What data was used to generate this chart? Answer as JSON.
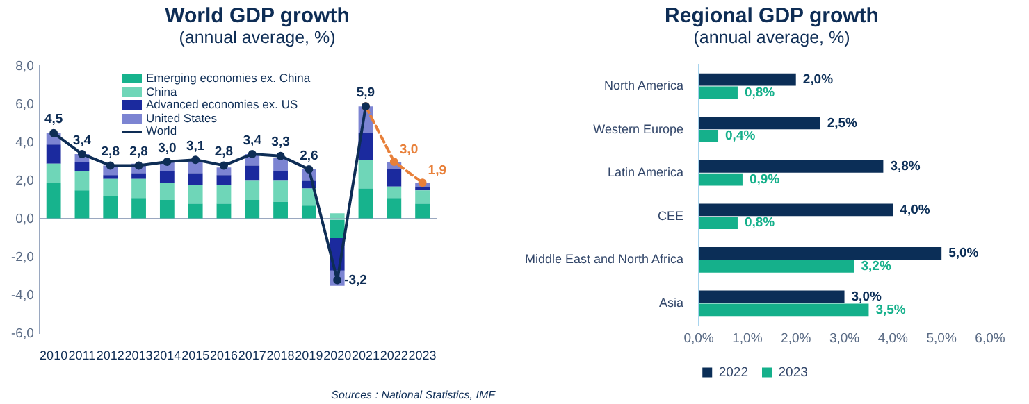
{
  "chart_data": [
    {
      "type": "bar",
      "title": "World GDP growth",
      "subtitle": "(annual average, %)",
      "categories": [
        "2010",
        "2011",
        "2012",
        "2013",
        "2014",
        "2015",
        "2016",
        "2017",
        "2018",
        "2019",
        "2020",
        "2021",
        "2022",
        "2023"
      ],
      "stacked": true,
      "legend": "top",
      "ylim": [
        -6,
        8
      ],
      "yticks": [
        {
          "value": -6,
          "label": "-6,0"
        },
        {
          "value": -4,
          "label": "-4,0"
        },
        {
          "value": -2,
          "label": "-2,0"
        },
        {
          "value": 0,
          "label": "0,0"
        },
        {
          "value": 2,
          "label": "2,0"
        },
        {
          "value": 4,
          "label": "4,0"
        },
        {
          "value": 6,
          "label": "6,0"
        },
        {
          "value": 8,
          "label": "8,0"
        }
      ],
      "series": [
        {
          "name": "Emerging economies ex. China",
          "color": "#17b38d",
          "values": [
            1.9,
            1.5,
            1.2,
            1.1,
            1.0,
            0.8,
            0.8,
            1.0,
            0.9,
            0.7,
            -1.0,
            1.6,
            1.1,
            0.8
          ]
        },
        {
          "name": "China",
          "color": "#6fd6b8",
          "values": [
            1.0,
            1.0,
            0.9,
            1.0,
            0.9,
            1.0,
            1.0,
            1.0,
            1.1,
            0.9,
            0.3,
            1.5,
            0.6,
            0.7
          ]
        },
        {
          "name": "Advanced economies ex. US",
          "color": "#1b2a9e",
          "values": [
            1.0,
            0.5,
            0.2,
            0.3,
            0.6,
            0.6,
            0.5,
            0.8,
            0.5,
            0.4,
            -1.7,
            1.4,
            0.9,
            0.2
          ]
        },
        {
          "name": "United States",
          "color": "#7c84d2",
          "values": [
            0.6,
            0.4,
            0.5,
            0.5,
            0.5,
            0.7,
            0.4,
            0.6,
            0.7,
            0.6,
            -0.8,
            1.4,
            0.4,
            0.2
          ]
        },
        {
          "name": "World",
          "type": "line",
          "color": "#0e2d55",
          "marker": "circle",
          "line_style": "solid",
          "values": [
            4.5,
            3.4,
            2.8,
            2.8,
            3.0,
            3.1,
            2.8,
            3.4,
            3.3,
            2.6,
            -3.2,
            5.9,
            null,
            null
          ],
          "value_labels": [
            "4,5",
            "3,4",
            "2,8",
            "2,8",
            "3,0",
            "3,1",
            "2,8",
            "3,4",
            "3,3",
            "2,6",
            "-3,2",
            "5,9",
            null,
            null
          ]
        },
        {
          "type": "line",
          "color": "#e8803a",
          "marker": "circle",
          "line_style": "dashed",
          "values": [
            null,
            null,
            null,
            null,
            null,
            null,
            null,
            null,
            null,
            null,
            null,
            5.9,
            3.0,
            1.9
          ],
          "value_labels": [
            null,
            null,
            null,
            null,
            null,
            null,
            null,
            null,
            null,
            null,
            null,
            null,
            "3,0",
            "1,9"
          ]
        }
      ],
      "annotations": [
        "Sources : National Statistics, IMF"
      ]
    },
    {
      "type": "bar",
      "title": "Regional GDP growth",
      "subtitle": "(annual average, %)",
      "orientation": "horizontal",
      "categories": [
        "North America",
        "Western Europe",
        "Latin America",
        "CEE",
        "Middle East and North Africa",
        "Asia"
      ],
      "legend": "bottom",
      "xlim": [
        0,
        6
      ],
      "xticks": [
        {
          "value": 0,
          "label": "0,0%"
        },
        {
          "value": 1,
          "label": "1,0%"
        },
        {
          "value": 2,
          "label": "2,0%"
        },
        {
          "value": 3,
          "label": "3,0%"
        },
        {
          "value": 4,
          "label": "4,0%"
        },
        {
          "value": 5,
          "label": "5,0%"
        },
        {
          "value": 6,
          "label": "6,0%"
        }
      ],
      "series": [
        {
          "name": "2022",
          "color": "#0b2e57",
          "values": [
            2.0,
            2.5,
            3.8,
            4.0,
            5.0,
            3.0
          ],
          "value_labels": [
            "2,0%",
            "2,5%",
            "3,8%",
            "4,0%",
            "5,0%",
            "3,0%"
          ]
        },
        {
          "name": "2023",
          "color": "#15b08b",
          "values": [
            0.8,
            0.4,
            0.9,
            0.8,
            3.2,
            3.5
          ],
          "value_labels": [
            "0,8%",
            "0,4%",
            "0,9%",
            "0,8%",
            "3,2%",
            "3,5%"
          ]
        }
      ]
    }
  ]
}
